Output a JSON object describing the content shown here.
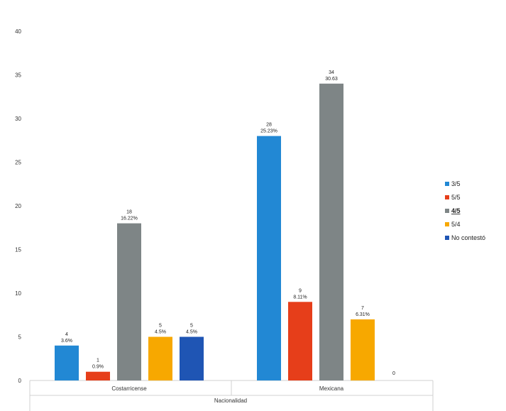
{
  "chart_data": {
    "type": "bar",
    "title": "",
    "xlabel": "Nacionalidad",
    "ylabel": "",
    "ylim": [
      0,
      40
    ],
    "yticks": [
      0,
      5,
      10,
      15,
      20,
      25,
      30,
      35,
      40
    ],
    "grid": false,
    "legend_position": "right",
    "categories": [
      "Costarricense",
      "Mexicana"
    ],
    "series": [
      {
        "name": "3/5",
        "color": "#2288d4",
        "values": [
          4,
          28
        ],
        "labels": [
          "3.6%",
          "25.23%"
        ]
      },
      {
        "name": "5/5",
        "color": "#e63e1a",
        "values": [
          1,
          9
        ],
        "labels": [
          "0.9%",
          "8.11%"
        ]
      },
      {
        "name": "4/5",
        "color": "#7e8586",
        "values": [
          18,
          34
        ],
        "labels": [
          "16.22%",
          "30.63"
        ],
        "emphasized": true
      },
      {
        "name": "5/4",
        "color": "#f7a800",
        "values": [
          5,
          7
        ],
        "labels": [
          "4.5%",
          "6.31%"
        ]
      },
      {
        "name": "No contestó",
        "color": "#1f55b4",
        "values": [
          5,
          0
        ],
        "labels": [
          "4.5%",
          ""
        ]
      }
    ]
  }
}
